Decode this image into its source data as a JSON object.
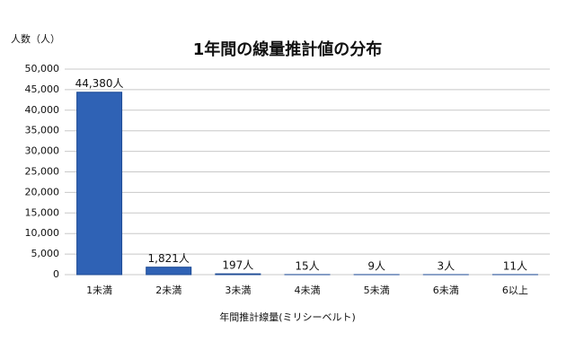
{
  "chart_data": {
    "type": "bar",
    "title": "1年間の線量推計値の分布",
    "y_label": "人数（人）",
    "x_label": "年間推計線量(ミリシーベルト)",
    "categories": [
      "1未満",
      "2未満",
      "3未満",
      "4未満",
      "5未満",
      "6未満",
      "6以上"
    ],
    "values": [
      44380,
      1821,
      197,
      15,
      9,
      3,
      11
    ],
    "value_labels": [
      "44,380人",
      "1,821人",
      "197人",
      "15人",
      "9人",
      "3人",
      "11人"
    ],
    "color": "#2f62b5",
    "ylim": [
      0,
      50000
    ],
    "yticks": [
      0,
      {
        "value": 5000,
        "label": "5,000"
      },
      {
        "value": 10000,
        "label": "10,000"
      },
      {
        "value": 15000,
        "label": "15,000"
      },
      {
        "value": 20000,
        "label": "20,000"
      },
      {
        "value": 25000,
        "label": "25,000"
      },
      {
        "value": 30000,
        "label": "30,000"
      },
      {
        "value": 35000,
        "label": "35,000"
      },
      {
        "value": 40000,
        "label": "40,000"
      },
      {
        "value": 45000,
        "label": "45,000"
      },
      {
        "value": 50000,
        "label": "50,000"
      }
    ],
    "grid": true
  }
}
